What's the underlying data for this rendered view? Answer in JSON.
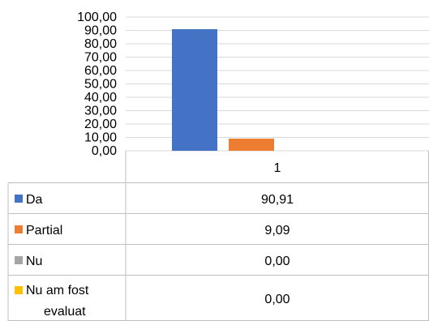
{
  "chart_data": {
    "type": "bar",
    "categories": [
      "1"
    ],
    "series": [
      {
        "name": "Da",
        "values": [
          90.91
        ],
        "color": "#4472C4",
        "value_label": "90,91"
      },
      {
        "name": "Partial",
        "values": [
          9.09
        ],
        "color": "#ED7D31",
        "value_label": "9,09"
      },
      {
        "name": "Nu",
        "values": [
          0.0
        ],
        "color": "#A5A5A5",
        "value_label": "0,00"
      },
      {
        "name": "Nu am fost evaluat",
        "values": [
          0.0
        ],
        "color": "#FFC000",
        "value_label": "0,00"
      }
    ],
    "yticks": [
      "0,00",
      "10,00",
      "20,00",
      "30,00",
      "40,00",
      "50,00",
      "60,00",
      "70,00",
      "80,00",
      "90,00",
      "100,00"
    ],
    "ylim": [
      0,
      100
    ],
    "grid": true,
    "legend": "data-table-bottom",
    "title": "",
    "xlabel": "",
    "ylabel": ""
  }
}
